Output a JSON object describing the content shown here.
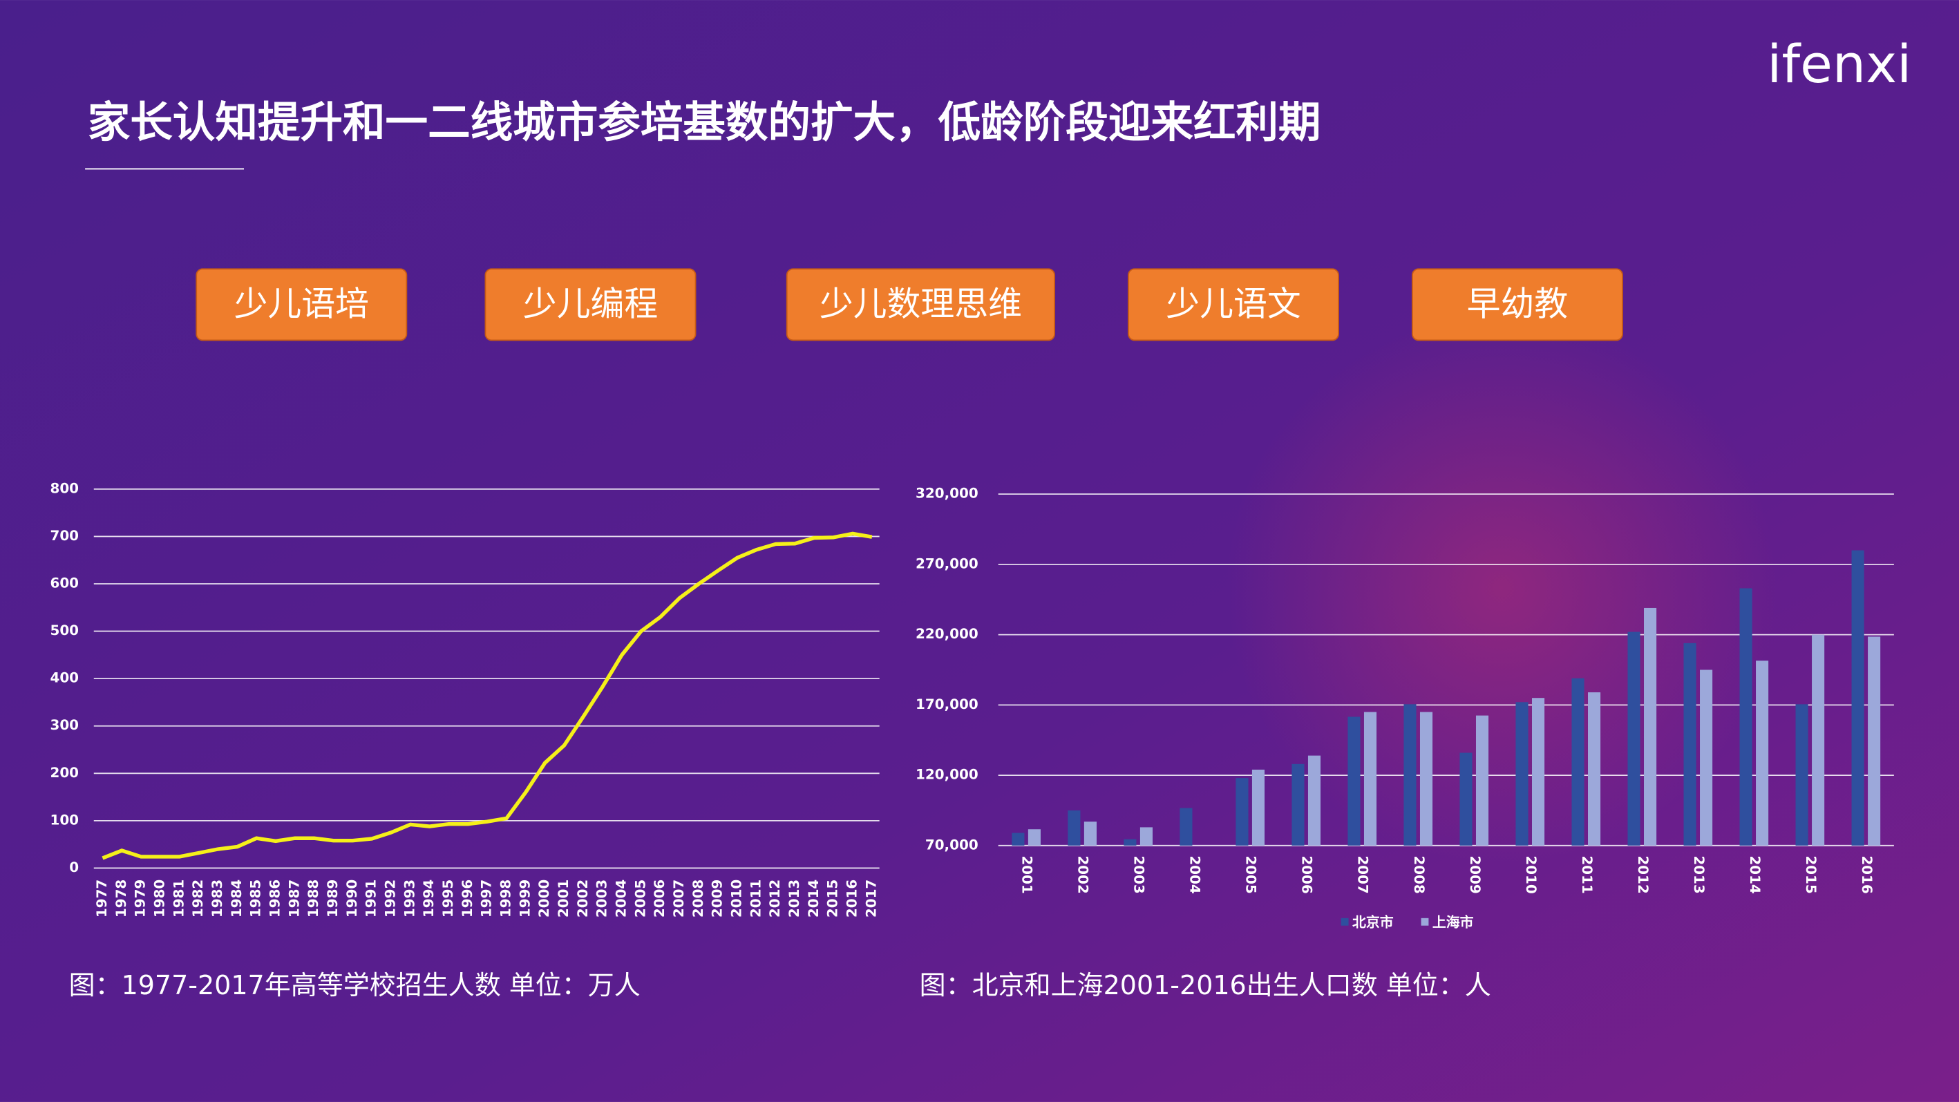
{
  "header": {
    "title": "家长认知提升和一二线城市参培基数的扩大，低龄阶段迎来红利期",
    "logo": "ifenxi"
  },
  "tags": [
    "少儿语培",
    "少儿编程",
    "少儿数理思维",
    "少儿语文",
    "早幼教"
  ],
  "chart_data": [
    {
      "type": "line",
      "caption": "图：1977-2017年高等学校招生人数   单位：万人",
      "categories": [
        "1977",
        "1978",
        "1979",
        "1980",
        "1981",
        "1982",
        "1983",
        "1984",
        "1985",
        "1986",
        "1987",
        "1988",
        "1989",
        "1990",
        "1991",
        "1992",
        "1993",
        "1994",
        "1995",
        "1996",
        "1997",
        "1998",
        "1999",
        "2000",
        "2001",
        "2002",
        "2003",
        "2004",
        "2005",
        "2006",
        "2007",
        "2008",
        "2009",
        "2010",
        "2011",
        "2012",
        "2013",
        "2014",
        "2015",
        "2016",
        "2017"
      ],
      "values": [
        21,
        37,
        24,
        24,
        24,
        32,
        40,
        45,
        63,
        57,
        63,
        63,
        58,
        58,
        62,
        75,
        92,
        88,
        93,
        93,
        98,
        105,
        160,
        222,
        259,
        320,
        383,
        450,
        500,
        530,
        570,
        600,
        628,
        655,
        672,
        684,
        685,
        697,
        698,
        706,
        699
      ],
      "color": "#f5f019",
      "ylim": [
        0,
        800
      ],
      "yticks": [
        0,
        100,
        200,
        300,
        400,
        500,
        600,
        700,
        800
      ],
      "grid": true
    },
    {
      "type": "bar",
      "caption": "图：北京和上海2001-2016出生人口数  单位：人",
      "categories": [
        "2001",
        "2002",
        "2003",
        "2004",
        "2005",
        "2006",
        "2007",
        "2008",
        "2009",
        "2010",
        "2011",
        "2012",
        "2013",
        "2014",
        "2015",
        "2016"
      ],
      "series": [
        {
          "name": "北京市",
          "color": "#2f4f9e",
          "values": [
            79000,
            95000,
            74500,
            96700,
            118000,
            128000,
            161600,
            170500,
            136000,
            172000,
            189000,
            222000,
            214000,
            253000,
            170500,
            280000
          ]
        },
        {
          "name": "上海市",
          "color": "#9ca8da",
          "values": [
            81600,
            87000,
            83000,
            null,
            124000,
            134000,
            165000,
            165000,
            162500,
            175000,
            179000,
            239000,
            195000,
            201500,
            220000,
            218600
          ]
        }
      ],
      "ylim": [
        70000,
        320000
      ],
      "yticks": [
        {
          "value": 70000,
          "label": "70,000"
        },
        {
          "value": 120000,
          "label": "120,000"
        },
        {
          "value": 170000,
          "label": "170,000"
        },
        {
          "value": 220000,
          "label": "220,000"
        },
        {
          "value": 270000,
          "label": "270,000"
        },
        {
          "value": 320000,
          "label": "320,000"
        }
      ],
      "grid": true,
      "legend": "bottom"
    }
  ]
}
